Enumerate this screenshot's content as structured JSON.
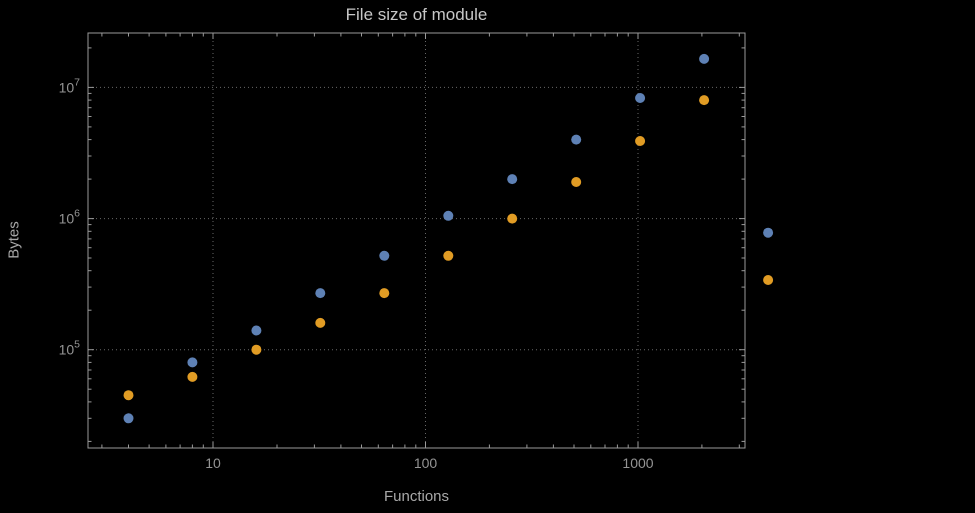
{
  "chart_data": {
    "type": "scatter",
    "title": "File size of module",
    "xlabel": "Functions",
    "ylabel": "Bytes",
    "x_scale": "log",
    "y_scale": "log",
    "grid": "dotted major gridlines both axes",
    "legend": "none",
    "xlim": [
      2.58,
      3190
    ],
    "ylim": [
      17800,
      26000000
    ],
    "x": [
      4,
      8,
      16,
      32,
      64,
      128,
      256,
      512,
      1024,
      2048,
      4096
    ],
    "series": [
      {
        "name": "blue",
        "color": "#5E81B5",
        "values": [
          30000,
          80000,
          140000,
          270000,
          520000,
          1050000,
          2000000,
          4000000,
          8300000,
          16500000,
          780000
        ]
      },
      {
        "name": "orange",
        "color": "#E19C24",
        "values": [
          45000,
          62000,
          100000,
          160000,
          270000,
          520000,
          1000000,
          1900000,
          3900000,
          8000000,
          340000
        ]
      }
    ],
    "x_ticks": [
      {
        "value": 10,
        "label": "10"
      },
      {
        "value": 100,
        "label": "100"
      },
      {
        "value": 1000,
        "label": "1000"
      }
    ],
    "y_ticks": [
      {
        "value": 100000,
        "base": "10",
        "exp": "5"
      },
      {
        "value": 1000000,
        "base": "10",
        "exp": "6"
      },
      {
        "value": 10000000,
        "base": "10",
        "exp": "7"
      }
    ]
  },
  "colors": {
    "background": "#000000",
    "frame": "#9a9a9a",
    "grid": "#686868",
    "title": "#c7c7c7",
    "axis_label": "#a8a8a8",
    "tick_label": "#949494"
  }
}
